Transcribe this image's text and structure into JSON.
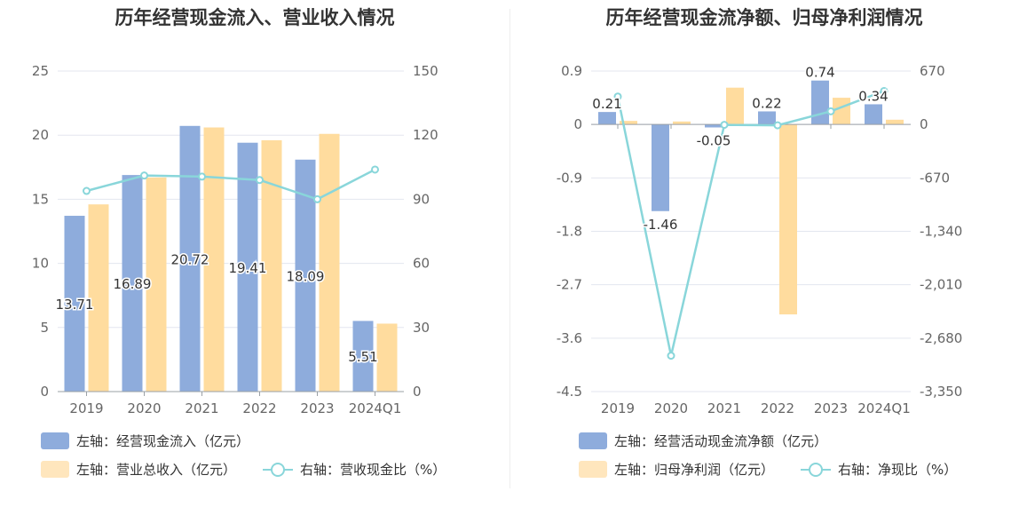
{
  "colors": {
    "bar_primary": "#8eacdc",
    "bar_secondary": "#ffdc9e",
    "line": "#89d6da",
    "grid": "#e3e6ef",
    "axis_text": "#666666"
  },
  "chart_data": [
    {
      "type": "bar",
      "title": "历年经营现金流入、营业收入情况",
      "categories": [
        "2019",
        "2020",
        "2021",
        "2022",
        "2023",
        "2024Q1"
      ],
      "y_left": {
        "ticks": [
          "0",
          "5",
          "10",
          "15",
          "20",
          "25"
        ],
        "ylim": [
          0,
          25
        ]
      },
      "y_right": {
        "ticks": [
          "0",
          "30",
          "60",
          "90",
          "120",
          "150"
        ],
        "ylim": [
          0,
          150
        ]
      },
      "series": [
        {
          "name": "左轴：经营现金流入（亿元）",
          "axis": "left",
          "kind": "bar",
          "values": [
            13.71,
            16.89,
            20.72,
            19.41,
            18.09,
            5.51
          ],
          "labels": [
            "13.71",
            "16.89",
            "20.72",
            "19.41",
            "18.09",
            "5.51"
          ]
        },
        {
          "name": "左轴：营业总收入（亿元）",
          "axis": "left",
          "kind": "bar",
          "values": [
            14.6,
            16.7,
            20.6,
            19.6,
            20.1,
            5.3
          ]
        },
        {
          "name": "右轴：营收现金比（%）",
          "axis": "right",
          "kind": "line",
          "values": [
            93.9,
            101.1,
            100.6,
            99.0,
            90.0,
            103.9
          ]
        }
      ],
      "grid": true,
      "legend_position": "bottom"
    },
    {
      "type": "bar",
      "title": "历年经营现金流净额、归母净利润情况",
      "categories": [
        "2019",
        "2020",
        "2021",
        "2022",
        "2023",
        "2024Q1"
      ],
      "y_left": {
        "ticks": [
          "-4.5",
          "-3.6",
          "-2.7",
          "-1.8",
          "-0.9",
          "0",
          "0.9"
        ],
        "ylim": [
          -4.5,
          0.9
        ]
      },
      "y_right": {
        "ticks": [
          "-3,350",
          "-2,680",
          "-2,010",
          "-1,340",
          "-670",
          "0",
          "670"
        ],
        "ylim": [
          -3350,
          670
        ]
      },
      "series": [
        {
          "name": "左轴：经营活动现金流净额（亿元）",
          "axis": "left",
          "kind": "bar",
          "values": [
            0.21,
            -1.46,
            -0.05,
            0.22,
            0.74,
            0.34
          ],
          "labels": [
            "0.21",
            "-1.46",
            "-0.05",
            "0.22",
            "0.74",
            "0.34"
          ]
        },
        {
          "name": "左轴：归母净利润（亿元）",
          "axis": "left",
          "kind": "bar",
          "values": [
            0.06,
            0.05,
            0.62,
            -3.2,
            0.45,
            0.08
          ]
        },
        {
          "name": "右轴：净现比（%）",
          "axis": "right",
          "kind": "line",
          "values": [
            350,
            -2900,
            -5,
            -10,
            165,
            420
          ]
        }
      ],
      "grid": true,
      "legend_position": "bottom"
    }
  ]
}
